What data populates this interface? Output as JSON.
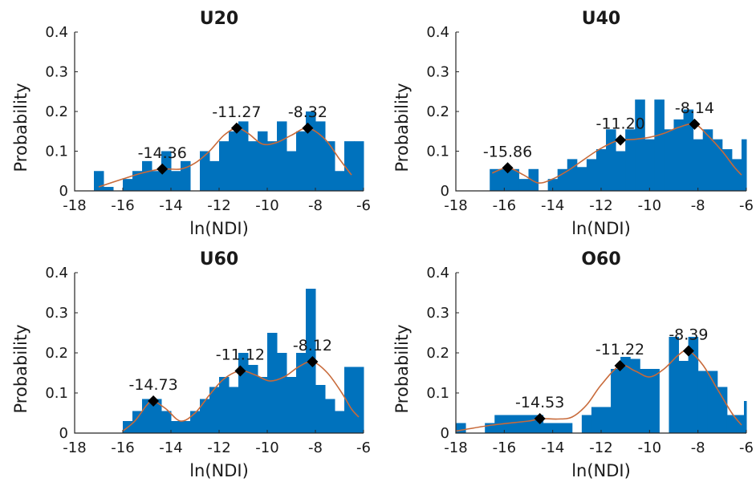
{
  "colors": {
    "bars": "#0072bd",
    "curve": "#c86a3a",
    "markers": "#000000",
    "axes": "#262626"
  },
  "chart_data": [
    {
      "type": "bar",
      "title": "U20",
      "xlabel": "ln(NDI)",
      "ylabel": "Probability",
      "xlim": [
        -18,
        -6
      ],
      "ylim": [
        0,
        0.4
      ],
      "xticks": [
        "-18",
        "-16",
        "-14",
        "-12",
        "-10",
        "-8",
        "-6"
      ],
      "yticks": [
        "0",
        "0.1",
        "0.2",
        "0.3",
        "0.4"
      ],
      "bin_width": 0.4,
      "bars": [
        [
          -17.0,
          0.05
        ],
        [
          -16.6,
          0.01
        ],
        [
          -16.2,
          0.0
        ],
        [
          -15.8,
          0.03
        ],
        [
          -15.4,
          0.05
        ],
        [
          -15.0,
          0.075
        ],
        [
          -14.6,
          0.05
        ],
        [
          -14.2,
          0.1
        ],
        [
          -13.8,
          0.05
        ],
        [
          -13.4,
          0.075
        ],
        [
          -13.0,
          0.0
        ],
        [
          -12.6,
          0.1
        ],
        [
          -12.2,
          0.075
        ],
        [
          -11.8,
          0.125
        ],
        [
          -11.4,
          0.15
        ],
        [
          -11.0,
          0.175
        ],
        [
          -10.6,
          0.125
        ],
        [
          -10.2,
          0.15
        ],
        [
          -9.8,
          0.125
        ],
        [
          -9.4,
          0.175
        ],
        [
          -9.0,
          0.1
        ],
        [
          -8.6,
          0.15
        ],
        [
          -8.2,
          0.2
        ],
        [
          -7.8,
          0.175
        ],
        [
          -7.4,
          0.125
        ],
        [
          -7.0,
          0.05
        ],
        [
          -6.6,
          0.125
        ],
        [
          -6.2,
          0.125
        ]
      ],
      "curve": [
        [
          -17.0,
          0.01
        ],
        [
          -16.0,
          0.03
        ],
        [
          -15.2,
          0.045
        ],
        [
          -14.4,
          0.055
        ],
        [
          -13.6,
          0.055
        ],
        [
          -13.0,
          0.07
        ],
        [
          -12.4,
          0.1
        ],
        [
          -11.8,
          0.14
        ],
        [
          -11.27,
          0.158
        ],
        [
          -10.8,
          0.145
        ],
        [
          -10.2,
          0.118
        ],
        [
          -9.6,
          0.122
        ],
        [
          -9.0,
          0.14
        ],
        [
          -8.32,
          0.158
        ],
        [
          -7.6,
          0.13
        ],
        [
          -7.0,
          0.08
        ],
        [
          -6.5,
          0.04
        ]
      ],
      "peaks": [
        {
          "x": -14.36,
          "y": 0.055,
          "label": "-14.36"
        },
        {
          "x": -11.27,
          "y": 0.158,
          "label": "-11.27"
        },
        {
          "x": -8.32,
          "y": 0.158,
          "label": "-8.32"
        }
      ]
    },
    {
      "type": "bar",
      "title": "U40",
      "xlabel": "ln(NDI)",
      "ylabel": "Probability",
      "xlim": [
        -18,
        -6
      ],
      "ylim": [
        0,
        0.4
      ],
      "xticks": [
        "-18",
        "-16",
        "-14",
        "-12",
        "-10",
        "-8",
        "-6"
      ],
      "yticks": [
        "0",
        "0.1",
        "0.2",
        "0.3",
        "0.4"
      ],
      "bin_width": 0.4,
      "bars": [
        [
          -16.4,
          0.055
        ],
        [
          -16.0,
          0.055
        ],
        [
          -15.6,
          0.055
        ],
        [
          -15.2,
          0.03
        ],
        [
          -14.8,
          0.055
        ],
        [
          -14.4,
          0.0
        ],
        [
          -14.0,
          0.03
        ],
        [
          -13.6,
          0.055
        ],
        [
          -13.2,
          0.08
        ],
        [
          -12.8,
          0.06
        ],
        [
          -12.4,
          0.08
        ],
        [
          -12.0,
          0.105
        ],
        [
          -11.6,
          0.155
        ],
        [
          -11.2,
          0.1
        ],
        [
          -10.8,
          0.155
        ],
        [
          -10.4,
          0.23
        ],
        [
          -10.0,
          0.13
        ],
        [
          -9.6,
          0.23
        ],
        [
          -9.2,
          0.155
        ],
        [
          -8.8,
          0.18
        ],
        [
          -8.4,
          0.205
        ],
        [
          -8.0,
          0.13
        ],
        [
          -7.6,
          0.155
        ],
        [
          -7.2,
          0.13
        ],
        [
          -6.8,
          0.105
        ],
        [
          -6.4,
          0.08
        ],
        [
          -6.0,
          0.13
        ]
      ],
      "curve": [
        [
          -16.5,
          0.045
        ],
        [
          -15.86,
          0.058
        ],
        [
          -15.2,
          0.04
        ],
        [
          -14.6,
          0.02
        ],
        [
          -14.0,
          0.03
        ],
        [
          -13.4,
          0.05
        ],
        [
          -12.8,
          0.075
        ],
        [
          -12.2,
          0.1
        ],
        [
          -11.6,
          0.12
        ],
        [
          -11.2,
          0.128
        ],
        [
          -10.6,
          0.13
        ],
        [
          -10.0,
          0.135
        ],
        [
          -9.4,
          0.145
        ],
        [
          -8.8,
          0.16
        ],
        [
          -8.14,
          0.168
        ],
        [
          -7.6,
          0.14
        ],
        [
          -7.0,
          0.1
        ],
        [
          -6.5,
          0.06
        ],
        [
          -6.2,
          0.04
        ]
      ],
      "peaks": [
        {
          "x": -15.86,
          "y": 0.058,
          "label": "-15.86"
        },
        {
          "x": -11.2,
          "y": 0.128,
          "label": "-11.20"
        },
        {
          "x": -8.14,
          "y": 0.168,
          "label": "-8.14"
        }
      ]
    },
    {
      "type": "bar",
      "title": "U60",
      "xlabel": "ln(NDI)",
      "ylabel": "Probability",
      "xlim": [
        -18,
        -6
      ],
      "ylim": [
        0,
        0.4
      ],
      "xticks": [
        "-18",
        "-16",
        "-14",
        "-12",
        "-10",
        "-8",
        "-6"
      ],
      "yticks": [
        "0",
        "0.1",
        "0.2",
        "0.3",
        "0.4"
      ],
      "bin_width": 0.4,
      "bars": [
        [
          -15.8,
          0.03
        ],
        [
          -15.4,
          0.055
        ],
        [
          -15.0,
          0.085
        ],
        [
          -14.6,
          0.085
        ],
        [
          -14.2,
          0.055
        ],
        [
          -13.8,
          0.03
        ],
        [
          -13.4,
          0.03
        ],
        [
          -13.0,
          0.055
        ],
        [
          -12.6,
          0.085
        ],
        [
          -12.2,
          0.115
        ],
        [
          -11.8,
          0.14
        ],
        [
          -11.4,
          0.115
        ],
        [
          -11.0,
          0.2
        ],
        [
          -10.6,
          0.17
        ],
        [
          -10.2,
          0.14
        ],
        [
          -9.8,
          0.25
        ],
        [
          -9.4,
          0.2
        ],
        [
          -9.0,
          0.14
        ],
        [
          -8.6,
          0.2
        ],
        [
          -8.2,
          0.36
        ],
        [
          -7.8,
          0.12
        ],
        [
          -7.4,
          0.085
        ],
        [
          -7.0,
          0.055
        ],
        [
          -6.6,
          0.165
        ],
        [
          -6.2,
          0.165
        ]
      ],
      "curve": [
        [
          -16.0,
          0.005
        ],
        [
          -15.5,
          0.03
        ],
        [
          -15.0,
          0.07
        ],
        [
          -14.73,
          0.08
        ],
        [
          -14.2,
          0.06
        ],
        [
          -13.6,
          0.03
        ],
        [
          -13.0,
          0.05
        ],
        [
          -12.4,
          0.095
        ],
        [
          -11.8,
          0.135
        ],
        [
          -11.12,
          0.155
        ],
        [
          -10.5,
          0.145
        ],
        [
          -9.9,
          0.13
        ],
        [
          -9.3,
          0.14
        ],
        [
          -8.7,
          0.165
        ],
        [
          -8.12,
          0.178
        ],
        [
          -7.5,
          0.15
        ],
        [
          -6.9,
          0.1
        ],
        [
          -6.5,
          0.06
        ],
        [
          -6.2,
          0.04
        ]
      ],
      "peaks": [
        {
          "x": -14.73,
          "y": 0.08,
          "label": "-14.73"
        },
        {
          "x": -11.12,
          "y": 0.155,
          "label": "-11.12"
        },
        {
          "x": -8.12,
          "y": 0.178,
          "label": "-8.12"
        }
      ]
    },
    {
      "type": "bar",
      "title": "O60",
      "xlabel": "ln(NDI)",
      "ylabel": "Probability",
      "xlim": [
        -18,
        -6
      ],
      "ylim": [
        0,
        0.4
      ],
      "xticks": [
        "-18",
        "-16",
        "-14",
        "-12",
        "-10",
        "-8",
        "-6"
      ],
      "yticks": [
        "0",
        "0.1",
        "0.2",
        "0.3",
        "0.4"
      ],
      "bin_width": 0.4,
      "bars": [
        [
          -17.8,
          0.025
        ],
        [
          -16.6,
          0.025
        ],
        [
          -16.2,
          0.045
        ],
        [
          -15.8,
          0.045
        ],
        [
          -15.4,
          0.045
        ],
        [
          -15.0,
          0.045
        ],
        [
          -14.6,
          0.045
        ],
        [
          -14.2,
          0.025
        ],
        [
          -13.8,
          0.025
        ],
        [
          -13.4,
          0.025
        ],
        [
          -12.6,
          0.045
        ],
        [
          -12.2,
          0.065
        ],
        [
          -11.8,
          0.065
        ],
        [
          -11.4,
          0.16
        ],
        [
          -11.0,
          0.19
        ],
        [
          -10.6,
          0.185
        ],
        [
          -10.2,
          0.16
        ],
        [
          -9.8,
          0.16
        ],
        [
          -9.4,
          0.0
        ],
        [
          -9.0,
          0.24
        ],
        [
          -8.6,
          0.18
        ],
        [
          -8.2,
          0.24
        ],
        [
          -7.8,
          0.155
        ],
        [
          -7.4,
          0.155
        ],
        [
          -7.0,
          0.115
        ],
        [
          -6.6,
          0.045
        ],
        [
          -6.2,
          0.045
        ],
        [
          -5.9,
          0.08
        ]
      ],
      "curve": [
        [
          -18.0,
          0.005
        ],
        [
          -16.5,
          0.02
        ],
        [
          -15.0,
          0.03
        ],
        [
          -14.53,
          0.036
        ],
        [
          -13.8,
          0.035
        ],
        [
          -13.2,
          0.04
        ],
        [
          -12.6,
          0.07
        ],
        [
          -12.0,
          0.12
        ],
        [
          -11.22,
          0.168
        ],
        [
          -10.6,
          0.155
        ],
        [
          -10.0,
          0.14
        ],
        [
          -9.4,
          0.16
        ],
        [
          -8.8,
          0.195
        ],
        [
          -8.39,
          0.205
        ],
        [
          -7.8,
          0.17
        ],
        [
          -7.2,
          0.11
        ],
        [
          -6.6,
          0.05
        ],
        [
          -6.2,
          0.02
        ]
      ],
      "peaks": [
        {
          "x": -14.53,
          "y": 0.036,
          "label": "-14.53"
        },
        {
          "x": -11.22,
          "y": 0.168,
          "label": "-11.22"
        },
        {
          "x": -8.39,
          "y": 0.205,
          "label": "-8.39"
        }
      ]
    }
  ]
}
